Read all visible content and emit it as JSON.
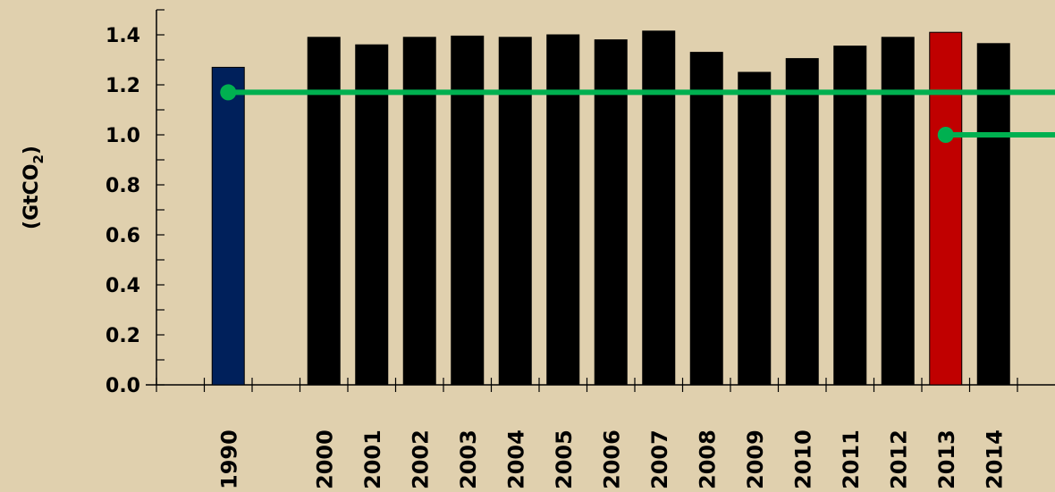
{
  "chart_data": {
    "type": "bar",
    "title": "",
    "xlabel": "",
    "ylabel": "(GtCO2)",
    "ylabel_main": "(GtCO",
    "ylabel_sub": "2",
    "ylabel_close": ")",
    "ylim": [
      0,
      1.4
    ],
    "yticks": [
      "0.0",
      "0.2",
      "0.4",
      "0.6",
      "0.8",
      "1.0",
      "1.2",
      "1.4"
    ],
    "categories": [
      "1990",
      "2000",
      "2001",
      "2002",
      "2003",
      "2004",
      "2005",
      "2006",
      "2007",
      "2008",
      "2009",
      "2010",
      "2011",
      "2012",
      "2013",
      "2014"
    ],
    "values": [
      1.27,
      1.39,
      1.36,
      1.39,
      1.395,
      1.39,
      1.4,
      1.38,
      1.415,
      1.33,
      1.25,
      1.305,
      1.355,
      1.39,
      1.41,
      1.365
    ],
    "bar_colors": [
      "#00205b",
      "#000000",
      "#000000",
      "#000000",
      "#000000",
      "#000000",
      "#000000",
      "#000000",
      "#000000",
      "#000000",
      "#000000",
      "#000000",
      "#000000",
      "#000000",
      "#c00000",
      "#000000"
    ],
    "reference_lines": [
      {
        "y": 1.17,
        "from_category": "1990",
        "color": "#00b050"
      },
      {
        "y": 1.0,
        "from_category": "2013",
        "color": "#00b050"
      }
    ],
    "grid": false,
    "background_color": "#e0d0ae"
  }
}
